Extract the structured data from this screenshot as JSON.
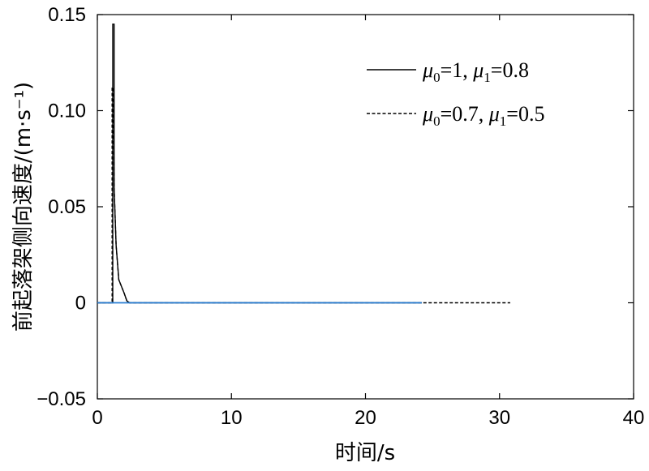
{
  "chart_data": {
    "type": "line",
    "xlabel": "时间/s",
    "ylabel": "前起落架侧向速度/(m·s⁻¹)",
    "xlim": [
      0,
      40
    ],
    "ylim": [
      -0.05,
      0.15
    ],
    "xticks": [
      "0",
      "10",
      "20",
      "30",
      "40"
    ],
    "yticks": [
      "−0.05",
      "0",
      "0.05",
      "0.10",
      "0.15"
    ],
    "grid": false,
    "legend_position": "top-right",
    "series": [
      {
        "name": "μ0=1, μ1=0.8",
        "legend_parts": [
          "μ",
          "0",
          "=1, ",
          "μ",
          "1",
          "=0.8"
        ],
        "style": "solid",
        "color": "#000000",
        "x": [
          0,
          1.15,
          1.15,
          1.25,
          1.25,
          1.4,
          1.6,
          2.0,
          2.2,
          2.4,
          24.2
        ],
        "y": [
          0,
          0,
          0.145,
          0.145,
          0.06,
          0.03,
          0.012,
          0.005,
          0.001,
          0,
          0
        ]
      },
      {
        "name": "μ0=0.7, μ1=0.5",
        "legend_parts": [
          "μ",
          "0",
          "=0.7, ",
          "μ",
          "1",
          "=0.5"
        ],
        "style": "dashed",
        "color": "#000000",
        "x": [
          0,
          1.1,
          1.1,
          1.2,
          1.25,
          1.4,
          1.6,
          2.0,
          2.2,
          2.4,
          30.8
        ],
        "y": [
          0,
          0,
          0.112,
          0.112,
          0.06,
          0.03,
          0.012,
          0.005,
          0.001,
          0,
          0
        ]
      },
      {
        "name": "",
        "style": "solid",
        "color": "#2a7fd4",
        "x": [
          0,
          24.2
        ],
        "y": [
          0,
          0
        ]
      }
    ]
  }
}
